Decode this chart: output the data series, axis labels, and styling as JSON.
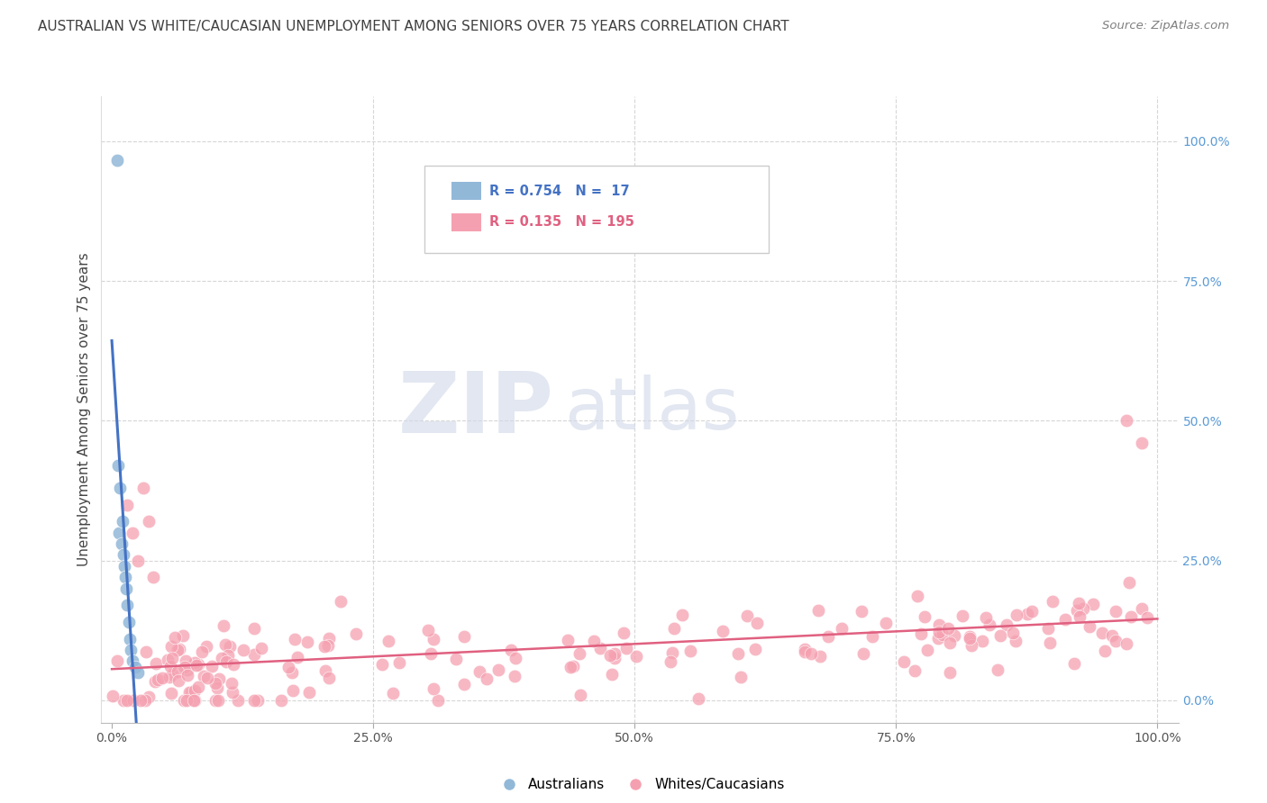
{
  "title": "AUSTRALIAN VS WHITE/CAUCASIAN UNEMPLOYMENT AMONG SENIORS OVER 75 YEARS CORRELATION CHART",
  "source": "Source: ZipAtlas.com",
  "ylabel": "Unemployment Among Seniors over 75 years",
  "watermark_zip": "ZIP",
  "watermark_atlas": "atlas",
  "legend_r_blue": "0.754",
  "legend_n_blue": "17",
  "legend_r_pink": "0.135",
  "legend_n_pink": "195",
  "legend_label_blue": "Australians",
  "legend_label_pink": "Whites/Caucasians",
  "blue_color": "#92B8D8",
  "pink_color": "#F5A0B0",
  "blue_line_color": "#4472C4",
  "pink_line_color": "#E06080",
  "right_axis_color": "#5B9BD5",
  "grid_color": "#CCCCCC",
  "title_color": "#404040",
  "source_color": "#808080"
}
